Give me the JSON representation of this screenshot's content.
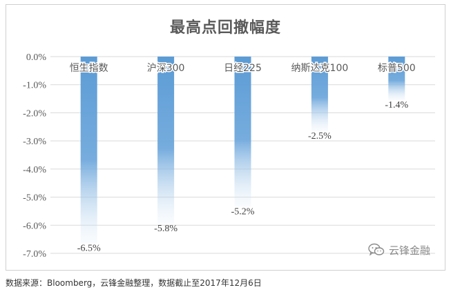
{
  "chart_data": {
    "type": "bar",
    "title": "最高点回撤幅度",
    "categories": [
      "恒生指数",
      "沪深300",
      "日经225",
      "纳斯达克100",
      "标普500"
    ],
    "values": [
      -6.5,
      -5.8,
      -5.2,
      -2.5,
      -1.4
    ],
    "data_labels": [
      "-6.5%",
      "-5.8%",
      "-5.2%",
      "-2.5%",
      "-1.4%"
    ],
    "y_ticks": [
      0,
      -1,
      -2,
      -3,
      -4,
      -5,
      -6,
      -7
    ],
    "y_tick_labels": [
      "0.0%",
      "-1.0%",
      "-2.0%",
      "-3.0%",
      "-4.0%",
      "-5.0%",
      "-6.0%",
      "-7.0%"
    ],
    "ylim": [
      -7,
      0
    ],
    "xlabel": "",
    "ylabel": "",
    "grid": true,
    "legend": "none",
    "bar_color": "#5b9bd5",
    "bar_style": "gradient-fade"
  },
  "watermark": {
    "icon": "wechat-logo-icon",
    "text": "云锋金融"
  },
  "source_note": "数据来源：Bloomberg，云锋金融整理，数据截止至2017年12月6日",
  "colors": {
    "gridline": "#d9d9d9",
    "text": "#595959"
  }
}
